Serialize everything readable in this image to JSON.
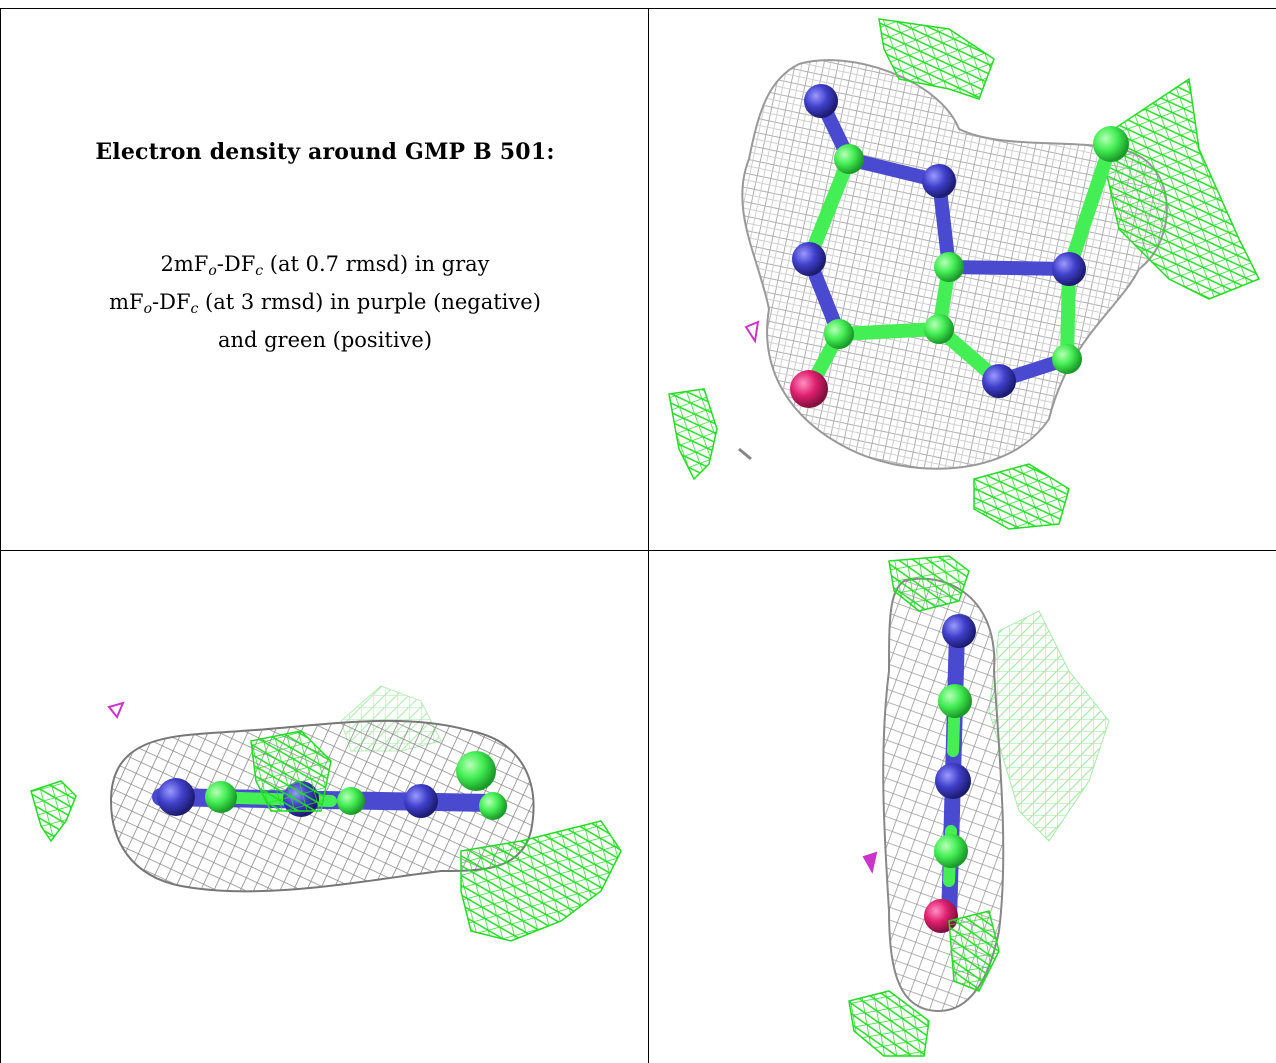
{
  "title": "Electron density around GMP B 501:",
  "legend": {
    "line1_prefix": "2mF",
    "line1_sub_o": "o",
    "line1_dash": "-DF",
    "line1_sub_c": "c",
    "line1_suffix": " (at 0.7 rmsd) in gray",
    "line2_prefix": "mF",
    "line2_sub_o": "o",
    "line2_dash": "-DF",
    "line2_sub_c": "c",
    "line2_suffix": " (at 3 rmsd) in purple (negative)",
    "line3": "and green (positive)"
  },
  "colors": {
    "density_2fofc": "#a8a8a8",
    "density_positive": "#22dd22",
    "density_negative": "#cc33cc",
    "carbon": "#44ee55",
    "nitrogen": "#4040cc",
    "oxygen": "#e02070"
  },
  "views": [
    "top-right molecule view",
    "bottom-left edge-on view",
    "bottom-right edge-on view"
  ]
}
